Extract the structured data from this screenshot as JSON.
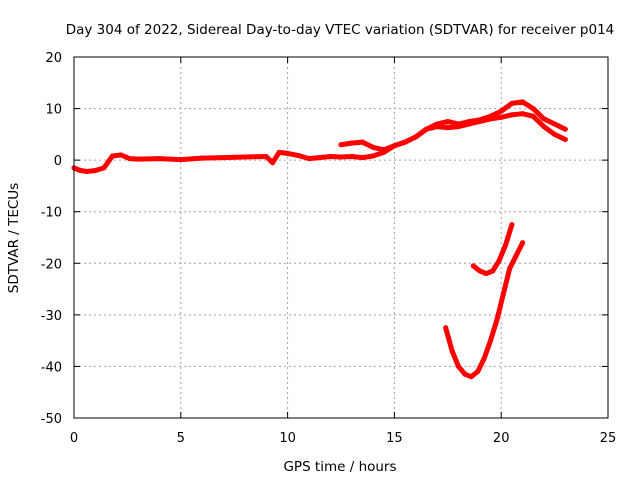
{
  "chart_data": {
    "type": "line",
    "title": "Day 304 of 2022, Sidereal Day-to-day VTEC variation (SDTVAR) for receiver p014",
    "xlabel": "GPS time / hours",
    "ylabel": "SDTVAR / TECUs",
    "xlim": [
      0,
      25
    ],
    "ylim": [
      -50,
      20
    ],
    "xticks": [
      0,
      5,
      10,
      15,
      20,
      25
    ],
    "yticks": [
      -50,
      -40,
      -30,
      -20,
      -10,
      0,
      10,
      20
    ],
    "grid": true,
    "legend": "none",
    "series_color": "#ff0000",
    "series": [
      {
        "name": "main-trace-a",
        "x": [
          0,
          0.3,
          0.6,
          1.0,
          1.4,
          1.8,
          2.2,
          2.6,
          3.0,
          4,
          5,
          6,
          7,
          8,
          9,
          9.3,
          9.6,
          10,
          10.5,
          11,
          11.5,
          12,
          12.5,
          13,
          13.5,
          14,
          14.5,
          15,
          15.5,
          16,
          16.5,
          17,
          17.5,
          18,
          18.5,
          19,
          19.5,
          20,
          20.5,
          21,
          21.5,
          22,
          22.5,
          23
        ],
        "y": [
          -1.5,
          -2,
          -2.2,
          -2,
          -1.5,
          0.8,
          1,
          0.3,
          0.2,
          0.3,
          0.1,
          0.4,
          0.5,
          0.6,
          0.7,
          -0.5,
          1.5,
          1.3,
          0.9,
          0.3,
          0.5,
          0.7,
          0.6,
          0.7,
          0.5,
          0.8,
          1.5,
          2.8,
          3.5,
          4.5,
          6,
          6.5,
          6.3,
          6.5,
          7,
          7.5,
          8,
          8.3,
          8.8,
          9,
          8.5,
          6.5,
          5,
          4
        ]
      },
      {
        "name": "main-trace-b",
        "x": [
          12.5,
          13,
          13.5,
          14,
          14.5,
          15,
          15.5,
          16,
          16.5,
          17,
          17.5,
          18,
          18.5,
          19,
          19.5,
          20,
          20.5,
          21,
          21.5,
          22,
          22.5,
          23
        ],
        "y": [
          3,
          3.3,
          3.5,
          2.5,
          2,
          2.8,
          3.5,
          4.5,
          6,
          7,
          7.5,
          7,
          7.5,
          7.8,
          8.5,
          9.5,
          11,
          11.3,
          10,
          8,
          7,
          6
        ]
      },
      {
        "name": "dip-trace-a",
        "x": [
          17.4,
          17.7,
          18,
          18.3,
          18.6,
          18.9,
          19.2,
          19.5,
          19.8,
          20.1,
          20.4,
          20.7,
          21
        ],
        "y": [
          -32.5,
          -37,
          -40,
          -41.5,
          -42,
          -41,
          -38.5,
          -35,
          -31,
          -26,
          -21,
          -18.5,
          -16
        ]
      },
      {
        "name": "dip-trace-b",
        "x": [
          18.7,
          19,
          19.3,
          19.6,
          19.9,
          20.2,
          20.5
        ],
        "y": [
          -20.5,
          -21.5,
          -22,
          -21.5,
          -19.5,
          -16.5,
          -12.5
        ]
      }
    ]
  }
}
